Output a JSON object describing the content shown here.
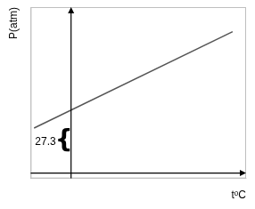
{
  "chart_data": {
    "type": "line",
    "xlabel": "tᵒC",
    "ylabel": "P(atm)",
    "x": [
      -55,
      240
    ],
    "values": [
      0.42,
      1.32
    ],
    "color": "#555555",
    "xlim": [
      -60,
      260
    ],
    "ylim": [
      -0.05,
      1.55
    ],
    "tick_labels": false,
    "grid": false,
    "annotations": [
      "27.3",
      "{"
    ]
  }
}
